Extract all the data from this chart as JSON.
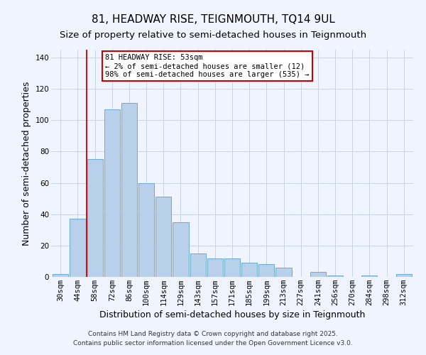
{
  "title": "81, HEADWAY RISE, TEIGNMOUTH, TQ14 9UL",
  "subtitle": "Size of property relative to semi-detached houses in Teignmouth",
  "xlabel": "Distribution of semi-detached houses by size in Teignmouth",
  "ylabel": "Number of semi-detached properties",
  "bar_labels": [
    "30sqm",
    "44sqm",
    "58sqm",
    "72sqm",
    "86sqm",
    "100sqm",
    "114sqm",
    "129sqm",
    "143sqm",
    "157sqm",
    "171sqm",
    "185sqm",
    "199sqm",
    "213sqm",
    "227sqm",
    "241sqm",
    "256sqm",
    "270sqm",
    "284sqm",
    "298sqm",
    "312sqm"
  ],
  "bar_values": [
    2,
    37,
    75,
    107,
    111,
    60,
    51,
    35,
    15,
    12,
    12,
    9,
    8,
    6,
    0,
    3,
    1,
    0,
    1,
    0,
    2
  ],
  "bar_color": "#b8d0ea",
  "bar_edge_color": "#6aaad4",
  "ylim": [
    0,
    145
  ],
  "yticks": [
    0,
    20,
    40,
    60,
    80,
    100,
    120,
    140
  ],
  "annotation_title": "81 HEADWAY RISE: 53sqm",
  "annotation_line1": "← 2% of semi-detached houses are smaller (12)",
  "annotation_line2": "98% of semi-detached houses are larger (535) →",
  "footer1": "Contains HM Land Registry data © Crown copyright and database right 2025.",
  "footer2": "Contains public sector information licensed under the Open Government Licence v3.0.",
  "background_color": "#f0f4ff",
  "grid_color": "#c8d4e8",
  "title_fontsize": 11,
  "subtitle_fontsize": 9.5,
  "axis_label_fontsize": 9,
  "tick_fontsize": 7.5,
  "footer_fontsize": 6.5,
  "red_line_color": "#cc0000",
  "ann_box_color": "#cc0000"
}
